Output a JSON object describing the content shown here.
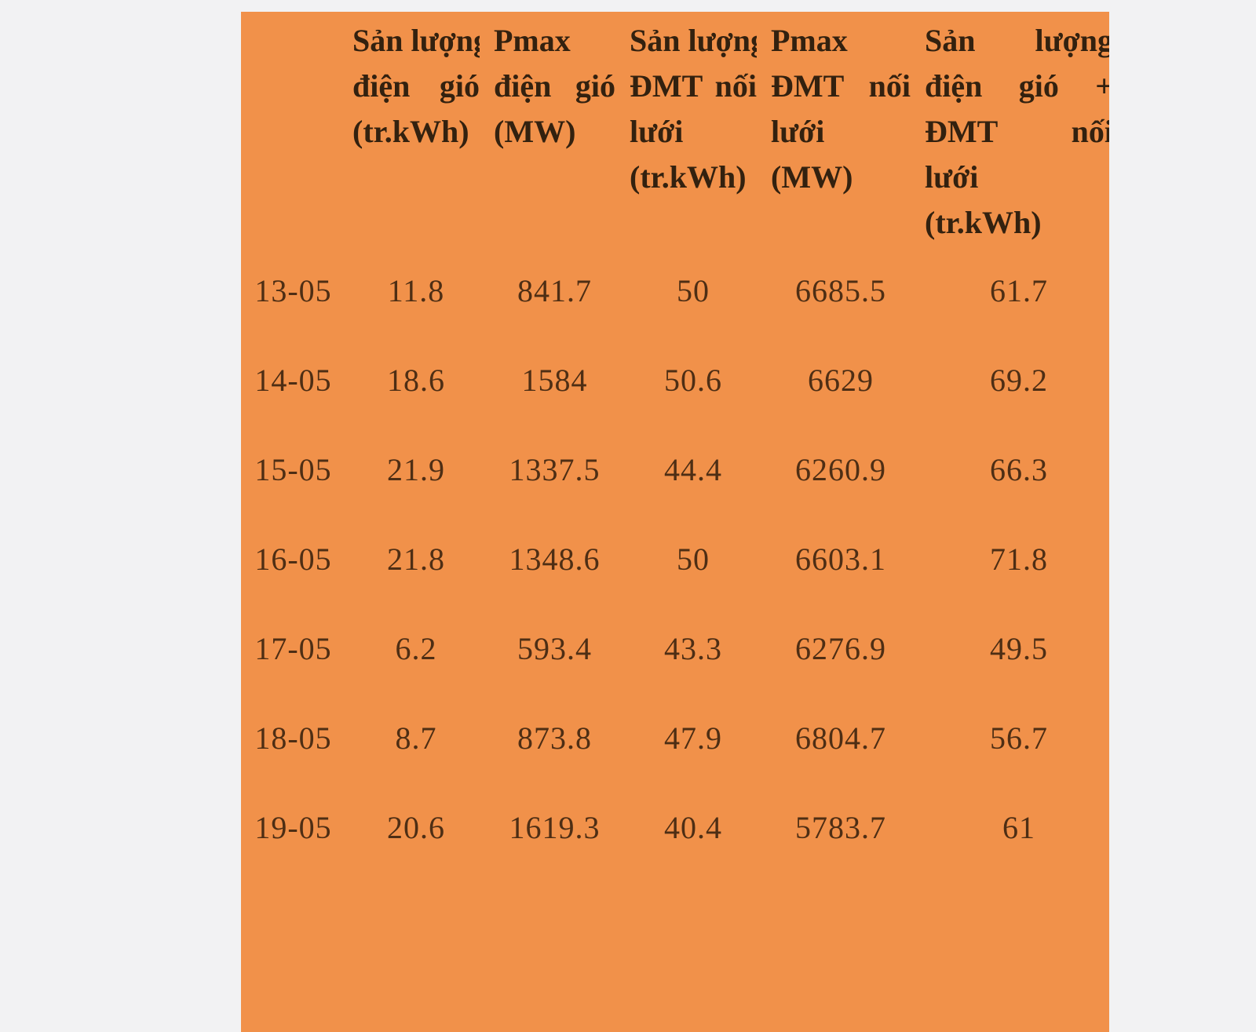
{
  "page": {
    "background_color": "#f2f2f3"
  },
  "table": {
    "background_color": "#f1914a",
    "header_text_color": "#33210f",
    "data_text_color": "#4e2e14",
    "headers": [
      {
        "label": "",
        "lines": []
      },
      {
        "label": "Sản lượng điện gió (tr.kWh)",
        "lines": [
          "Sản lượng",
          "điện gió",
          "(tr.kWh)"
        ]
      },
      {
        "label": "Pmax điện gió (MW)",
        "lines": [
          "Pmax",
          "điện gió",
          "(MW)"
        ]
      },
      {
        "label": "Sản lượng ĐMT nối lưới (tr.kWh)",
        "lines": [
          "Sản lượng",
          "ĐMT nối",
          "lưới",
          "(tr.kWh)"
        ]
      },
      {
        "label": "Pmax ĐMT nối lưới (MW)",
        "lines": [
          "Pmax",
          "ĐMT nối",
          "lưới",
          "(MW)"
        ]
      },
      {
        "label": "Sản lượng điện gió + ĐMT nối lưới (tr.kWh)",
        "lines": [
          "Sản lượng",
          "điện gió +",
          "ĐMT nối",
          "lưới",
          "(tr.kWh)"
        ]
      }
    ],
    "rows": [
      {
        "date": "13-05",
        "values": [
          "11.8",
          "841.7",
          "50",
          "6685.5",
          "61.7"
        ]
      },
      {
        "date": "14-05",
        "values": [
          "18.6",
          "1584",
          "50.6",
          "6629",
          "69.2"
        ]
      },
      {
        "date": "15-05",
        "values": [
          "21.9",
          "1337.5",
          "44.4",
          "6260.9",
          "66.3"
        ]
      },
      {
        "date": "16-05",
        "values": [
          "21.8",
          "1348.6",
          "50",
          "6603.1",
          "71.8"
        ]
      },
      {
        "date": "17-05",
        "values": [
          "6.2",
          "593.4",
          "43.3",
          "6276.9",
          "49.5"
        ]
      },
      {
        "date": "18-05",
        "values": [
          "8.7",
          "873.8",
          "47.9",
          "6804.7",
          "56.7"
        ]
      },
      {
        "date": "19-05",
        "values": [
          "20.6",
          "1619.3",
          "40.4",
          "5783.7",
          "61"
        ]
      }
    ]
  },
  "chart_data": {
    "type": "table",
    "columns": [
      "",
      "Sản lượng điện gió (tr.kWh)",
      "Pmax điện gió (MW)",
      "Sản lượng ĐMT nối lưới (tr.kWh)",
      "Pmax ĐMT nối lưới (MW)",
      "Sản lượng điện gió + ĐMT nối lưới (tr.kWh)"
    ],
    "rows": [
      [
        "13-05",
        11.8,
        841.7,
        50,
        6685.5,
        61.7
      ],
      [
        "14-05",
        18.6,
        1584,
        50.6,
        6629,
        69.2
      ],
      [
        "15-05",
        21.9,
        1337.5,
        44.4,
        6260.9,
        66.3
      ],
      [
        "16-05",
        21.8,
        1348.6,
        50,
        6603.1,
        71.8
      ],
      [
        "17-05",
        6.2,
        593.4,
        43.3,
        6276.9,
        49.5
      ],
      [
        "18-05",
        8.7,
        873.8,
        47.9,
        6804.7,
        56.7
      ],
      [
        "19-05",
        20.6,
        1619.3,
        40.4,
        5783.7,
        61
      ]
    ]
  }
}
